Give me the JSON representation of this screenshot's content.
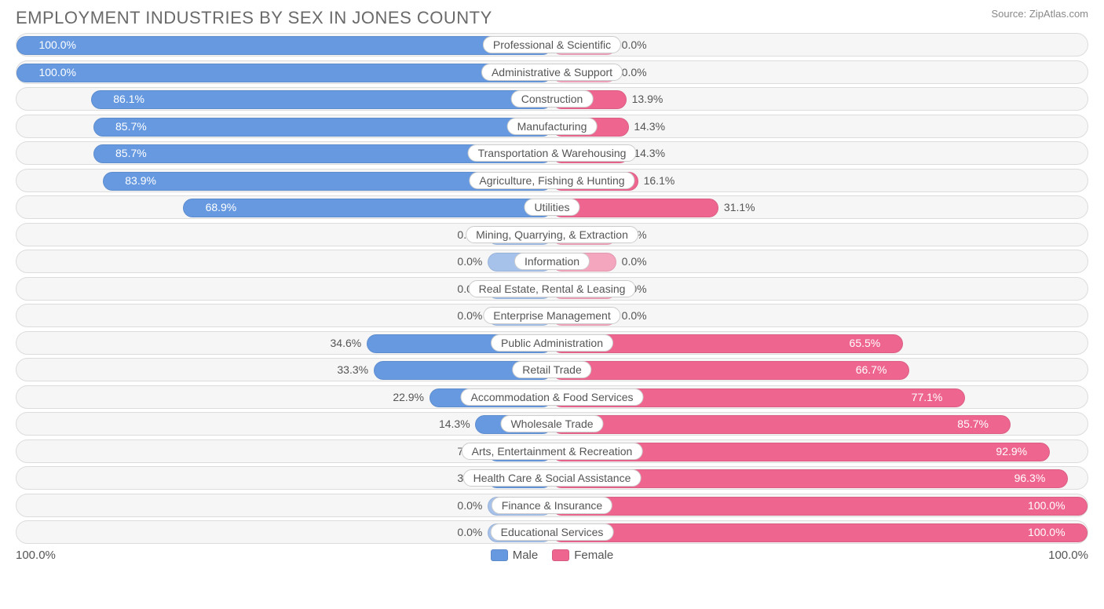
{
  "title": "EMPLOYMENT INDUSTRIES BY SEX IN JONES COUNTY",
  "source": "Source: ZipAtlas.com",
  "chart": {
    "type": "diverging-bar",
    "background_color": "#ffffff",
    "row_bg": "#f6f6f6",
    "row_border": "#dcdcdc",
    "label_bg": "#ffffff",
    "label_border": "#cccccc",
    "text_color": "#555555",
    "title_color": "#6a6a6a",
    "male_color": "#6699e0",
    "male_faded_color": "#a6c2eb",
    "female_color": "#ee6690",
    "female_faded_color": "#f5a6bf",
    "min_bar_pct": 12,
    "label_fontsize": 14,
    "pct_fontsize": 14,
    "rows": [
      {
        "label": "Professional & Scientific",
        "male": 100.0,
        "female": 0.0,
        "male_full": true,
        "female_full": false
      },
      {
        "label": "Administrative & Support",
        "male": 100.0,
        "female": 0.0,
        "male_full": true,
        "female_full": false
      },
      {
        "label": "Construction",
        "male": 86.1,
        "female": 13.9,
        "male_full": true,
        "female_full": true
      },
      {
        "label": "Manufacturing",
        "male": 85.7,
        "female": 14.3,
        "male_full": true,
        "female_full": true
      },
      {
        "label": "Transportation & Warehousing",
        "male": 85.7,
        "female": 14.3,
        "male_full": true,
        "female_full": true
      },
      {
        "label": "Agriculture, Fishing & Hunting",
        "male": 83.9,
        "female": 16.1,
        "male_full": true,
        "female_full": true
      },
      {
        "label": "Utilities",
        "male": 68.9,
        "female": 31.1,
        "male_full": true,
        "female_full": true
      },
      {
        "label": "Mining, Quarrying, & Extraction",
        "male": 0.0,
        "female": 0.0,
        "male_full": false,
        "female_full": false
      },
      {
        "label": "Information",
        "male": 0.0,
        "female": 0.0,
        "male_full": false,
        "female_full": false
      },
      {
        "label": "Real Estate, Rental & Leasing",
        "male": 0.0,
        "female": 0.0,
        "male_full": false,
        "female_full": false
      },
      {
        "label": "Enterprise Management",
        "male": 0.0,
        "female": 0.0,
        "male_full": false,
        "female_full": false
      },
      {
        "label": "Public Administration",
        "male": 34.6,
        "female": 65.5,
        "male_full": true,
        "female_full": true
      },
      {
        "label": "Retail Trade",
        "male": 33.3,
        "female": 66.7,
        "male_full": true,
        "female_full": true
      },
      {
        "label": "Accommodation & Food Services",
        "male": 22.9,
        "female": 77.1,
        "male_full": true,
        "female_full": true
      },
      {
        "label": "Wholesale Trade",
        "male": 14.3,
        "female": 85.7,
        "male_full": true,
        "female_full": true
      },
      {
        "label": "Arts, Entertainment & Recreation",
        "male": 7.1,
        "female": 92.9,
        "male_full": true,
        "female_full": true
      },
      {
        "label": "Health Care & Social Assistance",
        "male": 3.7,
        "female": 96.3,
        "male_full": true,
        "female_full": true
      },
      {
        "label": "Finance & Insurance",
        "male": 0.0,
        "female": 100.0,
        "male_full": false,
        "female_full": true
      },
      {
        "label": "Educational Services",
        "male": 0.0,
        "female": 100.0,
        "male_full": false,
        "female_full": true
      }
    ]
  },
  "axis": {
    "left": "100.0%",
    "right": "100.0%"
  },
  "legend": {
    "male": "Male",
    "female": "Female"
  }
}
